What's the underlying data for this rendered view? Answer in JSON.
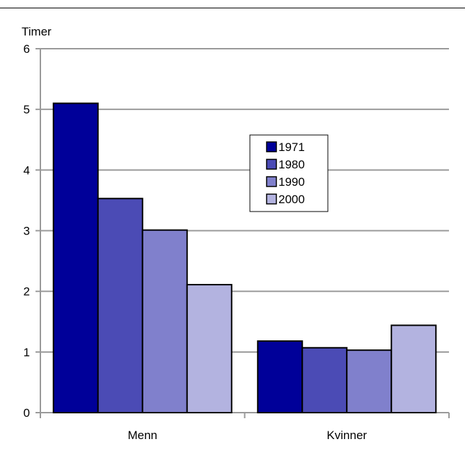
{
  "chart_data": {
    "type": "bar",
    "title": "",
    "ylabel": "Timer",
    "xlabel": "",
    "ylim": [
      0,
      6
    ],
    "yticks": [
      0,
      1,
      2,
      3,
      4,
      5,
      6
    ],
    "grid": true,
    "legend_position": "center-right",
    "categories": [
      "Menn",
      "Kvinner"
    ],
    "series": [
      {
        "name": "1971",
        "values": [
          5.1,
          1.18
        ],
        "color": "#000099"
      },
      {
        "name": "1980",
        "values": [
          3.53,
          1.07
        ],
        "color": "#4b4bb5"
      },
      {
        "name": "1990",
        "values": [
          3.01,
          1.03
        ],
        "color": "#8080cc"
      },
      {
        "name": "2000",
        "values": [
          2.11,
          1.44
        ],
        "color": "#b3b3e0"
      }
    ]
  }
}
